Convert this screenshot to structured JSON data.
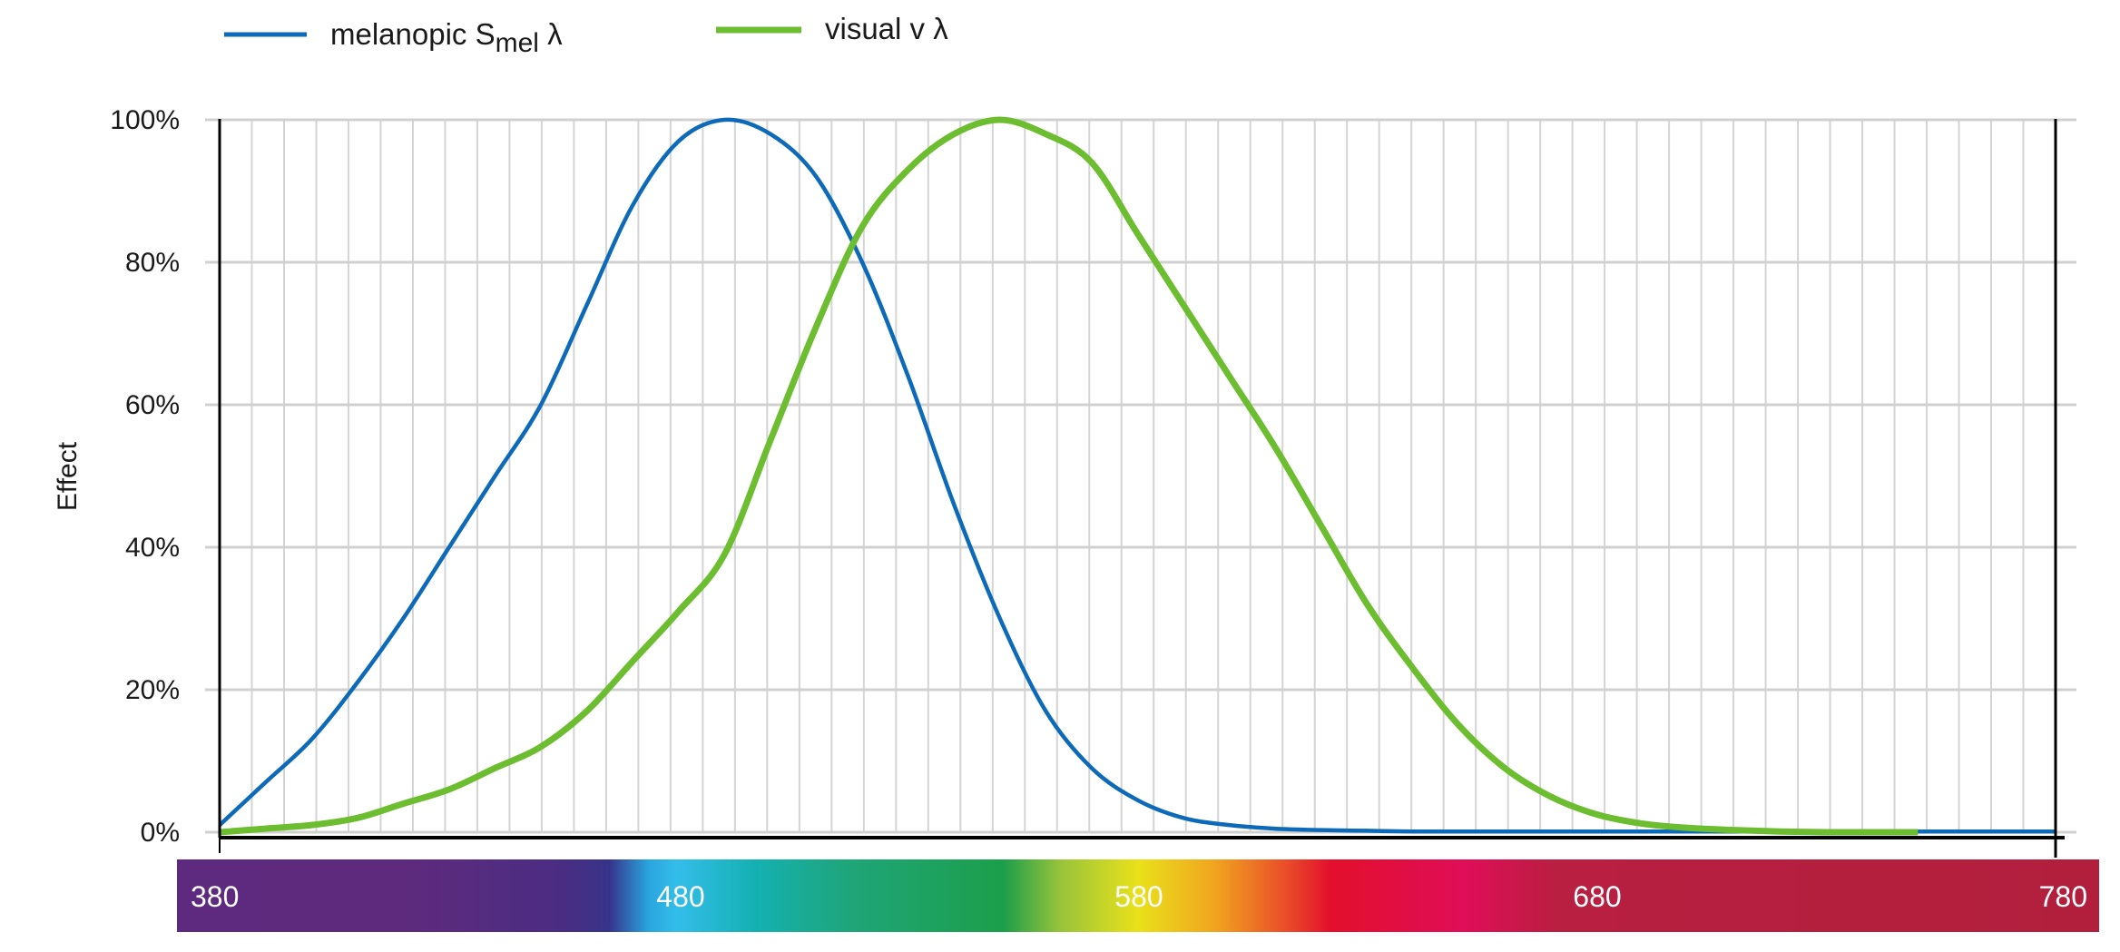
{
  "chart_data": {
    "type": "line",
    "title": "",
    "xlabel": "",
    "ylabel": "Effect",
    "xlim": [
      380,
      780
    ],
    "ylim": [
      0,
      100
    ],
    "yticks": [
      "0%",
      "20%",
      "40%",
      "60%",
      "80%",
      "100%"
    ],
    "xticks": [
      "380",
      "480",
      "580",
      "680",
      "780"
    ],
    "grid": true,
    "legend_position": "top-left",
    "x": [
      380,
      390,
      400,
      410,
      420,
      430,
      440,
      450,
      460,
      470,
      480,
      490,
      500,
      510,
      520,
      530,
      540,
      550,
      560,
      570,
      580,
      590,
      600,
      610,
      620,
      630,
      640,
      650,
      660,
      670,
      680,
      690,
      700,
      710,
      720,
      730,
      740,
      750,
      760,
      770,
      780
    ],
    "series": [
      {
        "name": "melanopic S",
        "name_subscript": "mel",
        "name_suffix": " λ",
        "color": "#0d6ab8",
        "values": [
          1,
          7,
          13,
          21,
          30,
          40,
          50,
          60,
          74,
          88,
          97,
          100,
          98,
          92,
          80,
          64,
          46,
          30,
          17,
          9,
          4.5,
          2,
          1,
          0.5,
          0.3,
          0.2,
          0.1,
          0.1,
          0.1,
          0.1,
          0.1,
          0.1,
          0.1,
          0.1,
          0.1,
          0.1,
          0.1,
          0.1,
          0.1,
          0.1,
          0.1
        ]
      },
      {
        "name": "visual v λ",
        "color": "#6cbd2f",
        "values": [
          0,
          0.5,
          1,
          2,
          4,
          6,
          9,
          12,
          17,
          24,
          31,
          39,
          55,
          71,
          85,
          93,
          98,
          100,
          98,
          94,
          84,
          74,
          64,
          54,
          43,
          32,
          23,
          15,
          9,
          5,
          2.5,
          1.2,
          0.6,
          0.3,
          0.1,
          0,
          0,
          0,
          null,
          null,
          null
        ]
      }
    ]
  }
}
